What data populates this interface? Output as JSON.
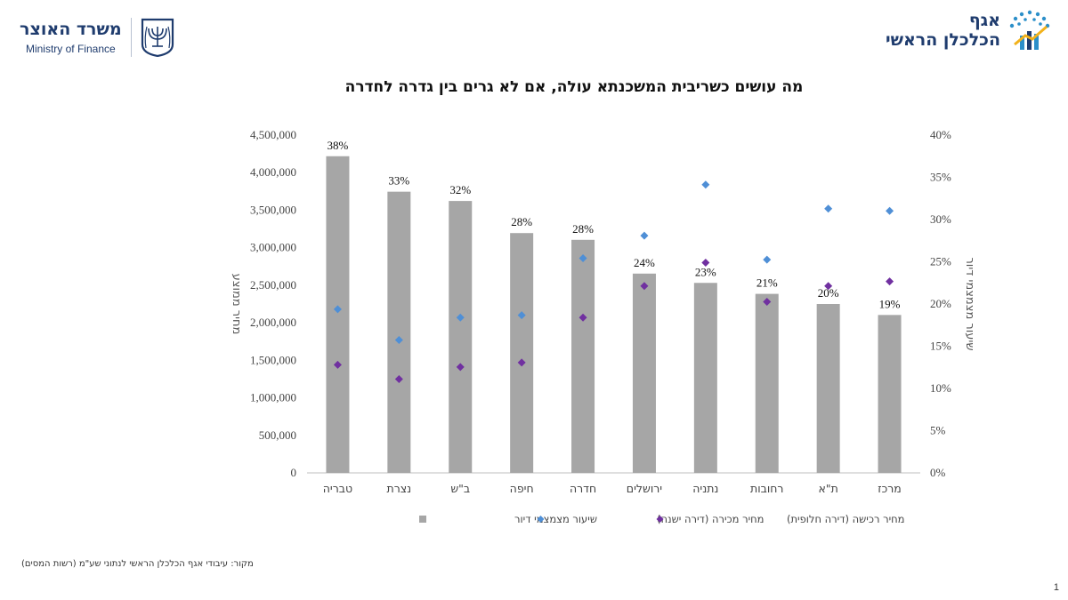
{
  "header": {
    "mof_hebrew": "משרד האוצר",
    "mof_english": "Ministry of Finance",
    "ce_line1": "אגף",
    "ce_line2": "הכלכלן הראשי"
  },
  "footer": {
    "source": "מקור: עיבודי אגף הכלכלן הראשי לנתוני שע\"מ (רשות המסים)",
    "page_number": "1"
  },
  "chart_data": {
    "type": "bar",
    "title": "מה עושים כשריבית המשכנתא עולה, אם לא גרים בין גדרה לחדרה",
    "categories": [
      "טבריה",
      "נצרת",
      "ב\"ש",
      "חיפה",
      "חדרה",
      "ירושלים",
      "נתניה",
      "רחובות",
      "ת\"א",
      "מרכז"
    ],
    "ylabel_right": "שיעור מצמצמי דיור",
    "ylabel_left": "מחיר ממוצע",
    "y_left_range": [
      0,
      4500000
    ],
    "y_left_ticks": [
      "0",
      "500,000",
      "1,000,000",
      "1,500,000",
      "2,000,000",
      "2,500,000",
      "3,000,000",
      "3,500,000",
      "4,000,000",
      "4,500,000"
    ],
    "y_right_range": [
      0,
      40
    ],
    "y_right_ticks": [
      "0%",
      "5%",
      "10%",
      "15%",
      "20%",
      "25%",
      "30%",
      "35%",
      "40%"
    ],
    "series": [
      {
        "name": "שיעור מצמצמי דיור",
        "kind": "bar",
        "axis": "right",
        "color": "#a6a6a6",
        "values": [
          37.5,
          33.3,
          32.2,
          28.4,
          27.6,
          23.6,
          22.5,
          21.2,
          20.0,
          18.7
        ],
        "labels": [
          "38%",
          "33%",
          "32%",
          "28%",
          "28%",
          "24%",
          "23%",
          "21%",
          "20%",
          "19%"
        ]
      },
      {
        "name": "מחיר מכירה (דירה ישנה)",
        "kind": "scatter",
        "axis": "left",
        "color": "#4f8fd6",
        "values": [
          2180000,
          1770000,
          2070000,
          2100000,
          2860000,
          3160000,
          3840000,
          2840000,
          3520000,
          3490000
        ]
      },
      {
        "name": "מחיר רכישה (דירה חלופית)",
        "kind": "scatter",
        "axis": "left",
        "color": "#7030a0",
        "values": [
          1440000,
          1250000,
          1410000,
          1470000,
          2070000,
          2490000,
          2800000,
          2280000,
          2490000,
          2550000
        ]
      }
    ],
    "legend_position": "bottom",
    "grid": false
  }
}
